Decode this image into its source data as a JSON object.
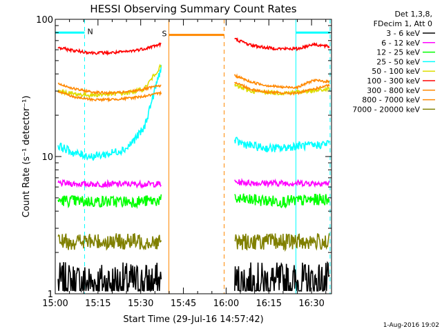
{
  "chart_data": {
    "type": "line",
    "title": "HESSI Observing Summary Count Rates",
    "xlabel": "Start Time (29-Jul-16 14:57:42)",
    "ylabel": "Count Rate (s⁻¹ detector⁻¹)",
    "x_ticks": [
      "15:00",
      "15:15",
      "15:30",
      "15:45",
      "16:00",
      "16:15",
      "16:30"
    ],
    "x_tick_minutes": [
      0,
      15,
      30,
      45,
      60,
      75,
      90
    ],
    "x_range_minutes": [
      0,
      97
    ],
    "y_scale": "log",
    "ylim": [
      1,
      100
    ],
    "y_tick_labels": [
      "1",
      "10",
      "100"
    ],
    "legend_header": [
      "Det 1,3,8,",
      "FDecim 1, Att 0"
    ],
    "legend_position": "top-right outside",
    "footer_date": "1-Aug-2016 19:02",
    "data_gap_minutes": [
      39.9,
      61.8
    ],
    "series": [
      {
        "name": "3 - 6 keV",
        "color": "#000000",
        "seg1": [
          1.2,
          1.2,
          1.2,
          1.2,
          1.2
        ],
        "seg2": [
          1.2,
          1.2,
          1.2,
          1.2,
          1.2
        ],
        "noise": 0.35
      },
      {
        "name": "6 - 12 keV",
        "color": "#ff00ff",
        "seg1": [
          6.4,
          6.3,
          6.3,
          6.3,
          6.3
        ],
        "seg2": [
          6.5,
          6.4,
          6.4,
          6.4,
          6.4
        ],
        "noise": 0.05
      },
      {
        "name": "12 - 25 keV",
        "color": "#00ff00",
        "seg1": [
          4.8,
          4.7,
          4.7,
          4.7,
          4.8
        ],
        "seg2": [
          4.9,
          4.8,
          4.7,
          4.8,
          4.9
        ],
        "noise": 0.1
      },
      {
        "name": "25 - 50 keV",
        "color": "#00ffff",
        "seg1": [
          12,
          10.5,
          10,
          10.5,
          11.5,
          16,
          45
        ],
        "seg2": [
          13,
          12,
          11.5,
          11.5,
          12,
          12,
          12.5
        ],
        "noise": 0.07
      },
      {
        "name": "50 - 100 keV",
        "color": "#dddd00",
        "seg1": [
          30,
          28.5,
          28,
          28.5,
          29,
          31,
          46
        ],
        "seg2": [
          33,
          30,
          29.5,
          29,
          29.5,
          30,
          31
        ],
        "noise": 0.035
      },
      {
        "name": "100 - 300 keV",
        "color": "#ff0000",
        "seg1": [
          62,
          59,
          57,
          57,
          58,
          61,
          66
        ],
        "seg2": [
          72,
          65,
          62,
          61,
          61,
          66,
          63
        ],
        "noise": 0.025
      },
      {
        "name": "300 - 800 keV",
        "color": "#ff8800",
        "seg1": [
          34,
          31,
          29.5,
          29,
          29.5,
          31,
          33
        ],
        "seg2": [
          39,
          35,
          33,
          32,
          32,
          36,
          35
        ],
        "noise": 0.02
      },
      {
        "name": "800 - 7000 keV",
        "color": "#ff8800",
        "seg1": [
          30,
          27,
          26,
          26,
          26.5,
          27.5,
          29
        ],
        "seg2": [
          35,
          31,
          29.5,
          29,
          29,
          31,
          33
        ],
        "noise": 0.02
      },
      {
        "name": "7000 - 20000 keV",
        "color": "#808000",
        "seg1": [
          2.4,
          2.4,
          2.4,
          2.4,
          2.4
        ],
        "seg2": [
          2.4,
          2.4,
          2.4,
          2.4,
          2.4
        ],
        "noise": 0.14
      }
    ],
    "markers": [
      {
        "label": "N",
        "color": "#00ffff",
        "start_minute": 0,
        "end_minute": 10.3,
        "y_value": 80,
        "dashed_end_minute": 10.3
      },
      {
        "label": "S",
        "color": "#ff8800",
        "start_minute": 39.9,
        "end_minute": 59.3,
        "y_value": 77,
        "dashed_end_minute": 59.3
      },
      {
        "label": "",
        "color": "#00ffff",
        "start_minute": 84.5,
        "end_minute": 96.5,
        "y_value": 80,
        "dashed_end_minute": 96.5
      }
    ]
  }
}
